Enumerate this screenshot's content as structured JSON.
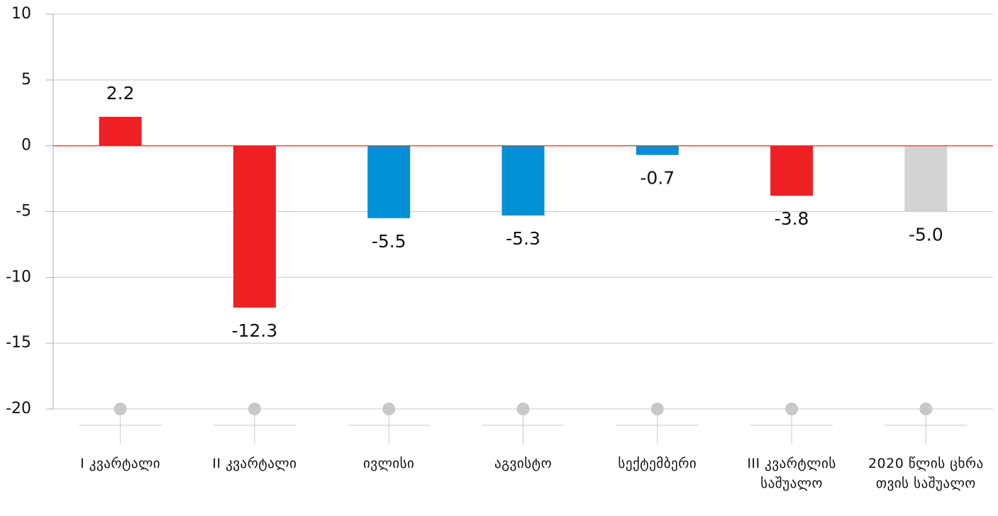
{
  "chart_data": {
    "type": "bar",
    "categories": [
      "I კვარტალი",
      "II კვარტალი",
      "ივლისი",
      "აგვისტო",
      "სექტემბერი",
      "III კვარტლის საშუალო",
      "2020 წლის ცხრა თვის საშუალო"
    ],
    "values": [
      2.2,
      -12.3,
      -5.5,
      -5.3,
      -0.7,
      -3.8,
      -5.0
    ],
    "value_labels": [
      "2.2",
      "-12.3",
      "-5.5",
      "-5.3",
      "-0.7",
      "-3.8",
      "-5.0"
    ],
    "colors": [
      "#ee2024",
      "#ee2024",
      "#0091d5",
      "#0091d5",
      "#0091d5",
      "#ee2024",
      "#d3d3d3"
    ],
    "zero_line_color": "#ee2024",
    "ylim": [
      -20,
      10
    ],
    "yticks": [
      -20,
      -15,
      -10,
      -5,
      0,
      5,
      10
    ],
    "grid": true
  }
}
